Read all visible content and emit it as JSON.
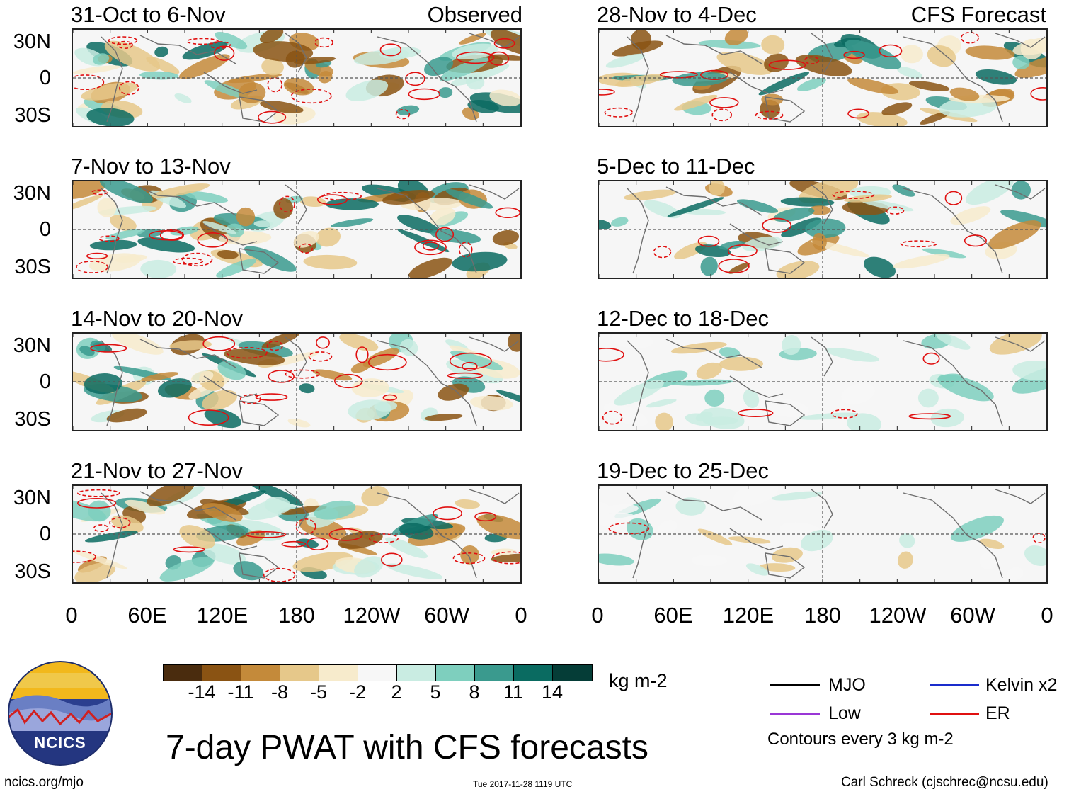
{
  "observed_label": "Observed",
  "forecast_label": "CFS Forecast",
  "lat_ticks": [
    "30N",
    "0",
    "30S"
  ],
  "lon_ticks": [
    "0",
    "60E",
    "120E",
    "180",
    "120W",
    "60W",
    "0"
  ],
  "panels": {
    "observed": [
      {
        "title": "31-Oct to 6-Nov"
      },
      {
        "title": "7-Nov to 13-Nov"
      },
      {
        "title": "14-Nov to 20-Nov"
      },
      {
        "title": "21-Nov to 27-Nov"
      }
    ],
    "forecast": [
      {
        "title": "28-Nov to 4-Dec"
      },
      {
        "title": "5-Dec to 11-Dec"
      },
      {
        "title": "12-Dec to 18-Dec"
      },
      {
        "title": "19-Dec to 25-Dec"
      }
    ]
  },
  "colorbar": {
    "labels": [
      "-14",
      "-11",
      "-8",
      "-5",
      "-2",
      "2",
      "5",
      "8",
      "11",
      "14"
    ],
    "units": "kg m-2",
    "colors": [
      "#4a2c0e",
      "#8a5313",
      "#c48a3a",
      "#e6c88a",
      "#f7ebcc",
      "#f7f7f7",
      "#c9ece2",
      "#7ecfbe",
      "#3a9a8e",
      "#0a6b61",
      "#053d37"
    ]
  },
  "legend": {
    "mjo": "MJO",
    "kelvin": "Kelvin x2",
    "low": "Low",
    "er": "ER",
    "contours": "Contours every 3 kg m-2",
    "colors": {
      "mjo": "#000000",
      "kelvin": "#1a2ccc",
      "low": "#9a36d6",
      "er": "#e01010"
    }
  },
  "main_title": "7-day PWAT with CFS forecasts",
  "logo_text": "NCICS",
  "footer": {
    "url": "ncics.org/mjo",
    "timestamp": "Tue 2017-11-28 1119 UTC",
    "author": "Carl Schreck (cjschrec@ncsu.edu)"
  }
}
